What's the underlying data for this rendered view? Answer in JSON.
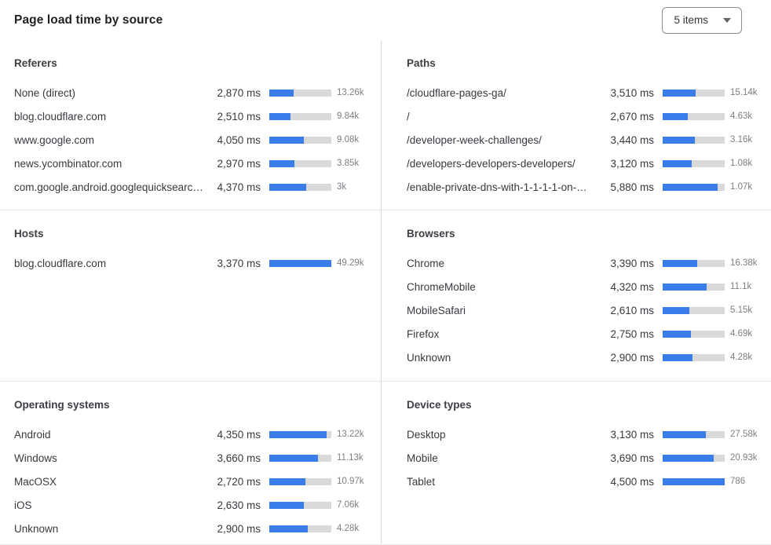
{
  "header": {
    "title": "Page load time by source",
    "items_dropdown": {
      "value": "5 items"
    }
  },
  "colors": {
    "bar_fill": "#3b7ceb",
    "bar_track": "#d9d9d9",
    "divider_vertical": "#dcdcdc",
    "divider_horizontal": "#e7e7e7"
  },
  "panels": [
    {
      "title": "Referers",
      "bar_scale_max_ms": 7300,
      "rows": [
        {
          "label": "None (direct)",
          "value_ms": 2870,
          "value_text": "2,870 ms",
          "count": "13.26k"
        },
        {
          "label": "blog.cloudflare.com",
          "value_ms": 2510,
          "value_text": "2,510 ms",
          "count": "9.84k"
        },
        {
          "label": "www.google.com",
          "value_ms": 4050,
          "value_text": "4,050 ms",
          "count": "9.08k"
        },
        {
          "label": "news.ycombinator.com",
          "value_ms": 2970,
          "value_text": "2,970 ms",
          "count": "3.85k"
        },
        {
          "label": "com.google.android.googlequicksearc…",
          "value_ms": 4370,
          "value_text": "4,370 ms",
          "count": "3k"
        }
      ]
    },
    {
      "title": "Paths",
      "bar_scale_max_ms": 6640,
      "rows": [
        {
          "label": "/cloudflare-pages-ga/",
          "value_ms": 3510,
          "value_text": "3,510 ms",
          "count": "15.14k"
        },
        {
          "label": "/",
          "value_ms": 2670,
          "value_text": "2,670 ms",
          "count": "4.63k"
        },
        {
          "label": "/developer-week-challenges/",
          "value_ms": 3440,
          "value_text": "3,440 ms",
          "count": "3.16k"
        },
        {
          "label": "/developers-developers-developers/",
          "value_ms": 3120,
          "value_text": "3,120 ms",
          "count": "1.08k"
        },
        {
          "label": "/enable-private-dns-with-1-1-1-1-on-…",
          "value_ms": 5880,
          "value_text": "5,880 ms",
          "count": "1.07k"
        }
      ]
    },
    {
      "title": "Hosts",
      "bar_scale_max_ms": 3370,
      "rows": [
        {
          "label": "blog.cloudflare.com",
          "value_ms": 3370,
          "value_text": "3,370 ms",
          "count": "49.29k"
        }
      ]
    },
    {
      "title": "Browsers",
      "bar_scale_max_ms": 6100,
      "rows": [
        {
          "label": "Chrome",
          "value_ms": 3390,
          "value_text": "3,390 ms",
          "count": "16.38k"
        },
        {
          "label": "ChromeMobile",
          "value_ms": 4320,
          "value_text": "4,320 ms",
          "count": "11.1k"
        },
        {
          "label": "MobileSafari",
          "value_ms": 2610,
          "value_text": "2,610 ms",
          "count": "5.15k"
        },
        {
          "label": "Firefox",
          "value_ms": 2750,
          "value_text": "2,750 ms",
          "count": "4.69k"
        },
        {
          "label": "Unknown",
          "value_ms": 2900,
          "value_text": "2,900 ms",
          "count": "4.28k"
        }
      ]
    },
    {
      "title": "Operating systems",
      "bar_scale_max_ms": 4690,
      "rows": [
        {
          "label": "Android",
          "value_ms": 4350,
          "value_text": "4,350 ms",
          "count": "13.22k"
        },
        {
          "label": "Windows",
          "value_ms": 3660,
          "value_text": "3,660 ms",
          "count": "11.13k"
        },
        {
          "label": "MacOSX",
          "value_ms": 2720,
          "value_text": "2,720 ms",
          "count": "10.97k"
        },
        {
          "label": "iOS",
          "value_ms": 2630,
          "value_text": "2,630 ms",
          "count": "7.06k"
        },
        {
          "label": "Unknown",
          "value_ms": 2900,
          "value_text": "2,900 ms",
          "count": "4.28k"
        }
      ]
    },
    {
      "title": "Device types",
      "bar_scale_max_ms": 4500,
      "rows": [
        {
          "label": "Desktop",
          "value_ms": 3130,
          "value_text": "3,130 ms",
          "count": "27.58k"
        },
        {
          "label": "Mobile",
          "value_ms": 3690,
          "value_text": "3,690 ms",
          "count": "20.93k"
        },
        {
          "label": "Tablet",
          "value_ms": 4500,
          "value_text": "4,500 ms",
          "count": "786"
        }
      ]
    }
  ]
}
